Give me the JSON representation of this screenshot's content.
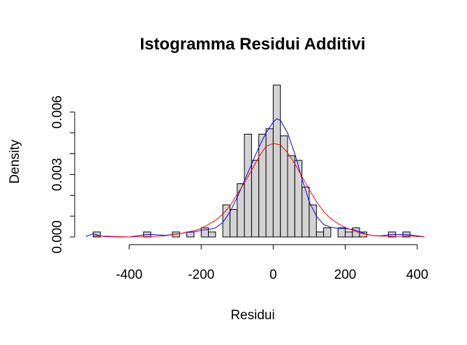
{
  "chart_data": {
    "type": "bar",
    "title": "Istogramma Residui Additivi",
    "xlabel": "Residui",
    "ylabel": "Density",
    "xlim": [
      -530,
      420
    ],
    "ylim": [
      0,
      0.0072
    ],
    "x_ticks": [
      -400,
      -200,
      0,
      200,
      400
    ],
    "x_tick_labels": [
      "-400",
      "-200",
      "0",
      "200",
      "400"
    ],
    "y_ticks": [
      0.0,
      0.003,
      0.006
    ],
    "y_tick_labels": [
      "0.000",
      "0.003",
      "0.006"
    ],
    "bin_width": 20,
    "bins": [
      {
        "start": -500,
        "end": -480,
        "density": 0.00024
      },
      {
        "start": -360,
        "end": -340,
        "density": 0.00024
      },
      {
        "start": -280,
        "end": -260,
        "density": 0.00024
      },
      {
        "start": -240,
        "end": -220,
        "density": 0.00024
      },
      {
        "start": -200,
        "end": -180,
        "density": 0.00044
      },
      {
        "start": -180,
        "end": -160,
        "density": 0.00024
      },
      {
        "start": -140,
        "end": -120,
        "density": 0.00154
      },
      {
        "start": -120,
        "end": -100,
        "density": 0.00132
      },
      {
        "start": -100,
        "end": -80,
        "density": 0.00256
      },
      {
        "start": -80,
        "end": -60,
        "density": 0.00494
      },
      {
        "start": -60,
        "end": -40,
        "density": 0.00368
      },
      {
        "start": -40,
        "end": -20,
        "density": 0.00494
      },
      {
        "start": -20,
        "end": 0,
        "density": 0.0052
      },
      {
        "start": 0,
        "end": 20,
        "density": 0.0073
      },
      {
        "start": 20,
        "end": 40,
        "density": 0.00486
      },
      {
        "start": 40,
        "end": 60,
        "density": 0.0039
      },
      {
        "start": 60,
        "end": 80,
        "density": 0.00368
      },
      {
        "start": 80,
        "end": 100,
        "density": 0.0024
      },
      {
        "start": 100,
        "end": 120,
        "density": 0.00154
      },
      {
        "start": 120,
        "end": 140,
        "density": 0.00024
      },
      {
        "start": 140,
        "end": 160,
        "density": 0.00044
      },
      {
        "start": 180,
        "end": 200,
        "density": 0.00044
      },
      {
        "start": 200,
        "end": 220,
        "density": 0.00024
      },
      {
        "start": 220,
        "end": 240,
        "density": 0.00044
      },
      {
        "start": 240,
        "end": 260,
        "density": 0.00024
      },
      {
        "start": 320,
        "end": 340,
        "density": 0.00024
      },
      {
        "start": 360,
        "end": 380,
        "density": 0.00024
      }
    ],
    "curves": [
      {
        "color": "#0000ff",
        "points": [
          [
            -520,
            2e-05
          ],
          [
            -500,
            0.00016
          ],
          [
            -480,
            5e-05
          ],
          [
            -460,
            1e-05
          ],
          [
            -400,
            0.0
          ],
          [
            -360,
            0.0001
          ],
          [
            -340,
            0.00012
          ],
          [
            -300,
            8e-05
          ],
          [
            -260,
            0.00016
          ],
          [
            -240,
            0.00022
          ],
          [
            -220,
            0.00024
          ],
          [
            -200,
            0.00032
          ],
          [
            -180,
            0.00036
          ],
          [
            -160,
            0.00044
          ],
          [
            -140,
            0.0007
          ],
          [
            -120,
            0.0012
          ],
          [
            -100,
            0.0019
          ],
          [
            -80,
            0.0027
          ],
          [
            -60,
            0.0035
          ],
          [
            -40,
            0.0043
          ],
          [
            -20,
            0.005
          ],
          [
            0,
            0.00552
          ],
          [
            10,
            0.00568
          ],
          [
            20,
            0.0056
          ],
          [
            40,
            0.005
          ],
          [
            60,
            0.004
          ],
          [
            80,
            0.0028
          ],
          [
            100,
            0.0017
          ],
          [
            120,
            0.001
          ],
          [
            140,
            0.0006
          ],
          [
            160,
            0.00046
          ],
          [
            180,
            0.00042
          ],
          [
            200,
            0.0004
          ],
          [
            220,
            0.00036
          ],
          [
            240,
            0.00026
          ],
          [
            260,
            0.00012
          ],
          [
            280,
            6e-05
          ],
          [
            300,
            6e-05
          ],
          [
            320,
            0.0001
          ],
          [
            340,
            0.00012
          ],
          [
            360,
            0.00012
          ],
          [
            380,
            0.0001
          ],
          [
            400,
            5e-05
          ],
          [
            420,
            1e-05
          ]
        ]
      },
      {
        "color": "#ff0000",
        "points": [
          [
            -500,
            6e-05
          ],
          [
            -400,
            0.0
          ],
          [
            -340,
            2e-05
          ],
          [
            -300,
            6e-05
          ],
          [
            -260,
            0.00016
          ],
          [
            -220,
            0.0003
          ],
          [
            -200,
            0.0004
          ],
          [
            -180,
            0.0006
          ],
          [
            -160,
            0.0008
          ],
          [
            -140,
            0.0011
          ],
          [
            -120,
            0.0015
          ],
          [
            -100,
            0.00205
          ],
          [
            -80,
            0.0026
          ],
          [
            -60,
            0.0032
          ],
          [
            -40,
            0.00385
          ],
          [
            -20,
            0.00435
          ],
          [
            0,
            0.0045
          ],
          [
            20,
            0.00442
          ],
          [
            40,
            0.00405
          ],
          [
            60,
            0.00352
          ],
          [
            80,
            0.0029
          ],
          [
            100,
            0.00228
          ],
          [
            120,
            0.0017
          ],
          [
            140,
            0.00122
          ],
          [
            160,
            0.00088
          ],
          [
            180,
            0.00064
          ],
          [
            200,
            0.00046
          ],
          [
            220,
            0.00032
          ],
          [
            240,
            0.0002
          ],
          [
            260,
            0.00012
          ],
          [
            280,
            6e-05
          ],
          [
            300,
            4e-05
          ],
          [
            340,
            2e-05
          ],
          [
            380,
            6e-05
          ],
          [
            400,
            2e-05
          ],
          [
            420,
            1e-05
          ]
        ]
      }
    ],
    "grid": false,
    "legend": "none"
  }
}
